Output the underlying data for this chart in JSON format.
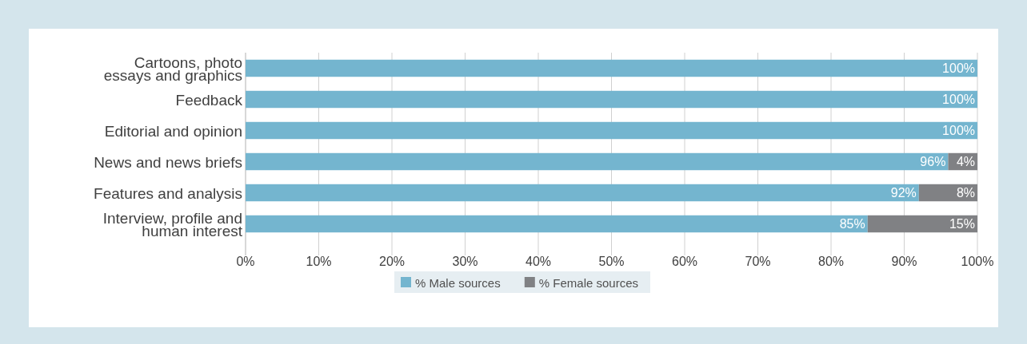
{
  "chart_data": {
    "type": "bar",
    "orientation": "horizontal",
    "stacked": true,
    "categories": [
      "Cartoons, photo\nessays and graphics",
      "Feedback",
      "Editorial and opinion",
      "News and news briefs",
      "Features and analysis",
      "Interview, profile and\nhuman interest"
    ],
    "series": [
      {
        "name": "% Male sources",
        "color": "#74b5cf",
        "values": [
          100,
          100,
          100,
          96,
          92,
          85
        ],
        "value_labels": [
          "100%",
          "100%",
          "100%",
          "96%",
          "92%",
          "85%"
        ]
      },
      {
        "name": "% Female sources",
        "color": "#808184",
        "values": [
          0,
          0,
          0,
          4,
          8,
          15
        ],
        "value_labels": [
          null,
          null,
          null,
          "4%",
          "8%",
          "15%"
        ]
      }
    ],
    "xlim": [
      0,
      100
    ],
    "xticks": [
      {
        "value": 0,
        "label": "0%"
      },
      {
        "value": 10,
        "label": "10%"
      },
      {
        "value": 20,
        "label": "20%"
      },
      {
        "value": 30,
        "label": "30%"
      },
      {
        "value": 40,
        "label": "40%"
      },
      {
        "value": 50,
        "label": "50%"
      },
      {
        "value": 60,
        "label": "60%"
      },
      {
        "value": 70,
        "label": "70%"
      },
      {
        "value": 80,
        "label": "80%"
      },
      {
        "value": 90,
        "label": "90%"
      },
      {
        "value": 100,
        "label": "100%"
      }
    ],
    "grid": "x",
    "legend": "bottom"
  }
}
